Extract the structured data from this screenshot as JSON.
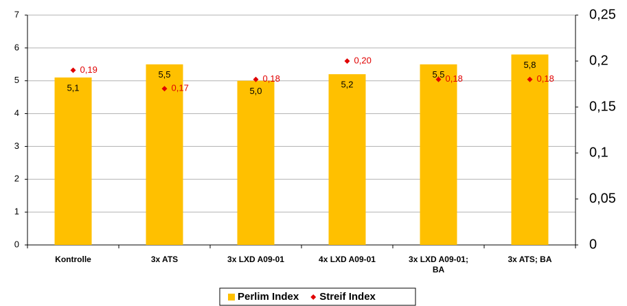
{
  "chart_data": {
    "type": "bar",
    "categories": [
      "Kontrolle",
      "3x ATS",
      "3x LXD A09-01",
      "4x LXD A09-01",
      "3x LXD A09-01;\nBA",
      "3x ATS; BA"
    ],
    "series": [
      {
        "name": "Perlim Index",
        "color": "#ffc000",
        "values": [
          5.1,
          5.5,
          5.0,
          5.2,
          5.5,
          5.8
        ],
        "value_labels": [
          "5,1",
          "5,5",
          "5,0",
          "5,2",
          "5,5",
          "5,8"
        ]
      },
      {
        "name": "Streif Index",
        "color": "#e00000",
        "axis": "y2",
        "values": [
          0.19,
          0.17,
          0.18,
          0.2,
          0.18,
          0.18
        ],
        "value_labels": [
          "0,19",
          "0,17",
          "0,18",
          "0,20",
          "0,18",
          "0,18"
        ]
      }
    ],
    "ylim": [
      0,
      7
    ],
    "yticks": [
      0,
      1,
      2,
      3,
      4,
      5,
      6,
      7
    ],
    "y2lim": [
      0,
      0.25
    ],
    "y2ticks": [
      0,
      {
        "value": 0.05,
        "label": "0,05"
      },
      {
        "value": 0.1,
        "label": "0,1"
      },
      {
        "value": 0.15,
        "label": "0,15"
      },
      {
        "value": 0.2,
        "label": "0,2"
      },
      {
        "value": 0.25,
        "label": "0,25"
      }
    ],
    "grid": true,
    "legend": "bottom"
  }
}
